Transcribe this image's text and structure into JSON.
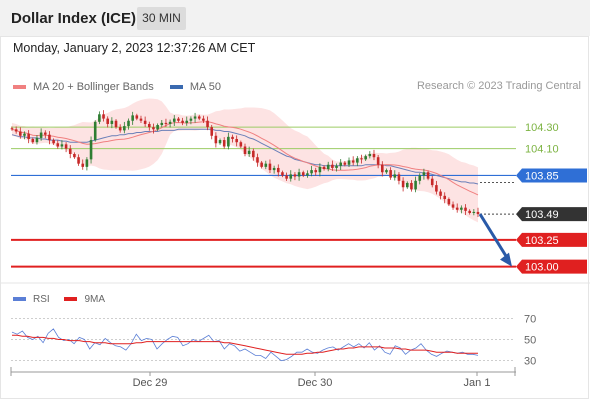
{
  "header": {
    "title": "Dollar Index (ICE)",
    "period": "30 MIN"
  },
  "timestamp": "Monday, January 2, 2023 12:37:26 AM CET",
  "legend": {
    "items": [
      {
        "label": "MA 20 + Bollinger Bands",
        "color": "#f08080"
      },
      {
        "label": "MA 50",
        "color": "#3a6ab0"
      }
    ],
    "credit": "Research © 2023 Trading Central"
  },
  "rsi_legend": {
    "items": [
      {
        "label": "RSI",
        "color": "#5b7fd6"
      },
      {
        "label": "9MA",
        "color": "#e02020"
      }
    ]
  },
  "colors": {
    "band": "#fde3e3",
    "ma20": "#f08080",
    "ma50": "#6a7fb8",
    "candle_up": "#2e7d32",
    "candle_down": "#c62828",
    "resistance": "#9ccc65",
    "pivot": "#2f6fd6",
    "support": "#e02020",
    "last": "#333333",
    "arrow": "#2a5aa8"
  },
  "chart_data": [
    {
      "type": "candlestick",
      "title": "",
      "ylim": [
        102.95,
        104.6
      ],
      "x_ticks": [
        "Dec 29",
        "Dec 30",
        "Jan 1"
      ],
      "levels": [
        {
          "value": 104.3,
          "label": "104.30",
          "kind": "resistance"
        },
        {
          "value": 104.1,
          "label": "104.10",
          "kind": "resistance"
        },
        {
          "value": 103.85,
          "label": "103.85",
          "kind": "pivot"
        },
        {
          "value": 103.49,
          "label": "103.49",
          "kind": "last"
        },
        {
          "value": 103.25,
          "label": "103.25",
          "kind": "support"
        },
        {
          "value": 103.0,
          "label": "103.00",
          "kind": "support"
        }
      ],
      "close_series": [
        104.28,
        104.26,
        104.22,
        104.24,
        104.19,
        104.16,
        104.2,
        104.25,
        104.23,
        104.18,
        104.15,
        104.12,
        104.14,
        104.1,
        104.05,
        104.02,
        103.96,
        103.93,
        104.0,
        104.18,
        104.35,
        104.42,
        104.38,
        104.33,
        104.36,
        104.3,
        104.27,
        104.31,
        104.36,
        104.41,
        104.38,
        104.36,
        104.33,
        104.3,
        104.28,
        104.32,
        104.34,
        104.33,
        104.35,
        104.38,
        104.36,
        104.34,
        104.36,
        104.38,
        104.4,
        104.38,
        104.36,
        104.3,
        104.22,
        104.15,
        104.18,
        104.12,
        104.21,
        104.19,
        104.16,
        104.12,
        104.05,
        104.08,
        104.02,
        103.97,
        103.93,
        103.96,
        103.9,
        103.92,
        103.88,
        103.85,
        103.82,
        103.86,
        103.84,
        103.88,
        103.85,
        103.87,
        103.9,
        103.88,
        103.93,
        103.91,
        103.95,
        103.92,
        103.94,
        103.97,
        103.95,
        103.99,
        103.97,
        104.01,
        104.0,
        104.03,
        104.05,
        104.02,
        103.95,
        103.88,
        103.9,
        103.83,
        103.86,
        103.8,
        103.74,
        103.78,
        103.72,
        103.8,
        103.85,
        103.88,
        103.82,
        103.76,
        103.7,
        103.66,
        103.63,
        103.58,
        103.55,
        103.53,
        103.55,
        103.52,
        103.5,
        103.51,
        103.49
      ],
      "ma50_series": [
        104.23,
        104.22,
        104.21,
        104.21,
        104.2,
        104.2,
        104.2,
        104.19,
        104.19,
        104.18,
        104.18,
        104.18,
        104.17,
        104.17,
        104.16,
        104.16,
        104.16,
        104.16,
        104.16,
        104.17,
        104.18,
        104.19,
        104.2,
        104.21,
        104.22,
        104.22,
        104.23,
        104.23,
        104.24,
        104.24,
        104.25,
        104.25,
        104.26,
        104.26,
        104.26,
        104.26,
        104.27,
        104.27,
        104.27,
        104.27,
        104.28,
        104.28,
        104.28,
        104.28,
        104.28,
        104.28,
        104.28,
        104.28,
        104.28,
        104.27,
        104.27,
        104.26,
        104.26,
        104.25,
        104.24,
        104.23,
        104.22,
        104.2,
        104.19,
        104.17,
        104.15,
        104.13,
        104.11,
        104.09,
        104.07,
        104.05,
        104.03,
        104.02,
        104.0,
        103.99,
        103.98,
        103.97,
        103.96,
        103.95,
        103.95,
        103.94,
        103.94,
        103.94,
        103.94,
        103.94,
        103.94,
        103.94,
        103.94,
        103.94,
        103.94,
        103.95,
        103.95,
        103.95,
        103.95,
        103.95,
        103.94,
        103.94,
        103.93,
        103.92,
        103.91,
        103.9,
        103.89,
        103.88,
        103.88,
        103.87,
        103.87,
        103.86,
        103.85,
        103.84,
        103.83,
        103.82,
        103.81,
        103.8,
        103.79,
        103.79,
        103.78,
        103.78,
        103.77
      ]
    },
    {
      "type": "line",
      "title": "",
      "ylim": [
        24,
        76
      ],
      "y_ticks": [
        70,
        50,
        30
      ],
      "series": [
        {
          "name": "RSI",
          "values": [
            57,
            55,
            58,
            52,
            50,
            53,
            47,
            56,
            60,
            52,
            49,
            50,
            46,
            52,
            50,
            41,
            47,
            45,
            51,
            47,
            44,
            43,
            40,
            46,
            55,
            49,
            51,
            50,
            41,
            46,
            50,
            53,
            52,
            44,
            46,
            50,
            48,
            51,
            54,
            48,
            49,
            41,
            46,
            44,
            39,
            41,
            38,
            35,
            35,
            32,
            38,
            34,
            30,
            31,
            34,
            38,
            38,
            41,
            38,
            37,
            40,
            42,
            43,
            40,
            43,
            46,
            43,
            46,
            42,
            47,
            40,
            44,
            38,
            36,
            44,
            42,
            36,
            40,
            42,
            46,
            40,
            36,
            34,
            37,
            39,
            38,
            37,
            38,
            36,
            36,
            35
          ]
        },
        {
          "name": "9MA",
          "values": [
            54,
            54,
            53,
            53,
            52,
            52,
            52,
            51,
            51,
            50,
            50,
            49,
            49,
            49,
            48,
            48,
            47,
            47,
            47,
            46,
            46,
            46,
            46,
            46,
            47,
            47,
            48,
            48,
            48,
            48,
            48,
            48,
            48,
            48,
            48,
            48,
            48,
            48,
            48,
            48,
            48,
            47,
            47,
            46,
            45,
            44,
            43,
            42,
            41,
            40,
            39,
            38,
            37,
            36,
            36,
            36,
            36,
            37,
            37,
            38,
            38,
            39,
            40,
            41,
            41,
            42,
            42,
            43,
            43,
            43,
            43,
            43,
            42,
            42,
            42,
            41,
            41,
            40,
            40,
            40,
            40,
            39,
            38,
            38,
            38,
            38,
            37,
            37,
            37,
            37,
            37
          ]
        }
      ]
    }
  ]
}
